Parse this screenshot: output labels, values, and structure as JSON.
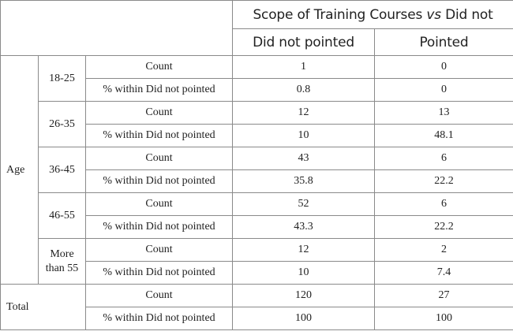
{
  "header": {
    "group_title_prefix": "Scope of Training Courses",
    "group_title_vs": "vs",
    "group_title_suffix": "Did not",
    "col1": "Did not pointed",
    "col2": "Pointed"
  },
  "age_label": "Age",
  "stat_labels": {
    "count": "Count",
    "pct": "% within Did not pointed"
  },
  "groups": [
    {
      "label": "18-25",
      "count": [
        "1",
        "0"
      ],
      "pct": [
        "0.8",
        "0"
      ]
    },
    {
      "label": "26-35",
      "count": [
        "12",
        "13"
      ],
      "pct": [
        "10",
        "48.1"
      ]
    },
    {
      "label": "36-45",
      "count": [
        "43",
        "6"
      ],
      "pct": [
        "35.8",
        "22.2"
      ]
    },
    {
      "label": "46-55",
      "count": [
        "52",
        "6"
      ],
      "pct": [
        "43.3",
        "22.2"
      ]
    },
    {
      "label": "More than 55",
      "count": [
        "12",
        "2"
      ],
      "pct": [
        "10",
        "7.4"
      ]
    }
  ],
  "total": {
    "label": "Total",
    "count": [
      "120",
      "27"
    ],
    "pct": [
      "100",
      "100"
    ]
  }
}
